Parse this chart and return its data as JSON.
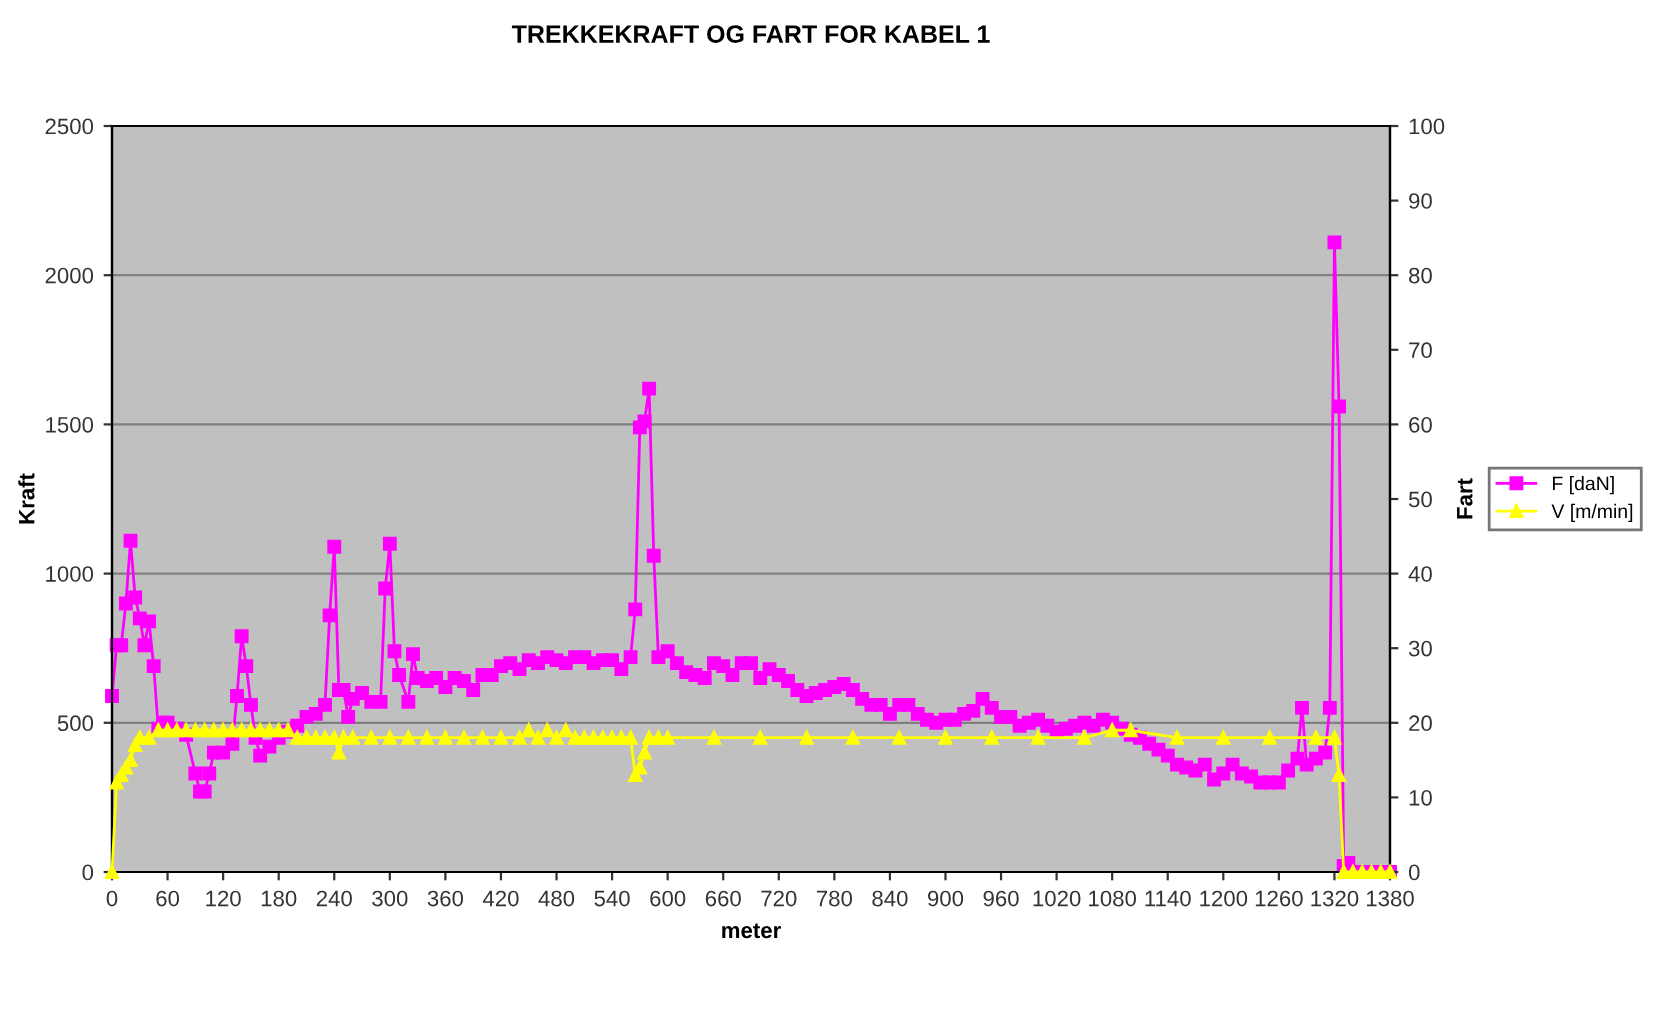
{
  "chart_data": {
    "type": "line",
    "title": "TREKKEKRAFT OG FART FOR KABEL 1",
    "xlabel": "meter",
    "ylabel": "Kraft",
    "y2label": "Fart",
    "xlim": [
      0,
      1380
    ],
    "xticks": [
      0,
      60,
      120,
      180,
      240,
      300,
      360,
      420,
      480,
      540,
      600,
      660,
      720,
      780,
      840,
      900,
      960,
      1020,
      1080,
      1140,
      1200,
      1260,
      1320,
      1380
    ],
    "ylim": [
      0,
      2500
    ],
    "yticks": [
      0,
      500,
      1000,
      1500,
      2000,
      2500
    ],
    "y2lim": [
      0,
      100
    ],
    "y2ticks": [
      0,
      10,
      20,
      30,
      40,
      50,
      60,
      70,
      80,
      90,
      100
    ],
    "grid": "y",
    "legend": "right",
    "series": [
      {
        "name": "F [daN]",
        "color": "#ff00ff",
        "marker": "square",
        "x": [
          0,
          5,
          10,
          15,
          20,
          25,
          30,
          35,
          40,
          45,
          50,
          55,
          60,
          70,
          80,
          90,
          95,
          100,
          105,
          110,
          120,
          130,
          135,
          140,
          145,
          150,
          155,
          160,
          170,
          180,
          190,
          200,
          210,
          220,
          230,
          235,
          240,
          245,
          250,
          255,
          260,
          270,
          280,
          290,
          295,
          300,
          305,
          310,
          320,
          325,
          330,
          340,
          350,
          360,
          370,
          380,
          390,
          400,
          410,
          420,
          430,
          440,
          450,
          460,
          470,
          480,
          490,
          500,
          510,
          520,
          530,
          540,
          550,
          560,
          565,
          570,
          575,
          580,
          585,
          590,
          600,
          610,
          620,
          630,
          640,
          650,
          660,
          670,
          680,
          690,
          700,
          710,
          720,
          730,
          740,
          750,
          760,
          770,
          780,
          790,
          800,
          810,
          820,
          830,
          840,
          850,
          860,
          870,
          880,
          890,
          900,
          910,
          920,
          930,
          940,
          950,
          960,
          970,
          980,
          990,
          1000,
          1010,
          1020,
          1030,
          1040,
          1050,
          1060,
          1070,
          1080,
          1090,
          1100,
          1110,
          1120,
          1130,
          1140,
          1150,
          1160,
          1170,
          1180,
          1190,
          1200,
          1210,
          1220,
          1230,
          1240,
          1250,
          1260,
          1270,
          1280,
          1285,
          1290,
          1300,
          1310,
          1315,
          1320,
          1325,
          1330,
          1335,
          1340,
          1350,
          1360,
          1370,
          1380
        ],
        "values": [
          590,
          760,
          760,
          900,
          1110,
          920,
          850,
          760,
          840,
          690,
          480,
          500,
          500,
          480,
          460,
          330,
          270,
          270,
          330,
          400,
          400,
          430,
          590,
          790,
          690,
          560,
          450,
          390,
          420,
          450,
          470,
          490,
          520,
          530,
          560,
          860,
          1090,
          610,
          610,
          520,
          580,
          600,
          570,
          570,
          950,
          1100,
          740,
          660,
          570,
          730,
          650,
          640,
          650,
          620,
          650,
          640,
          610,
          660,
          660,
          690,
          700,
          680,
          710,
          700,
          720,
          710,
          700,
          720,
          720,
          700,
          710,
          710,
          680,
          720,
          880,
          1490,
          1510,
          1620,
          1060,
          720,
          740,
          700,
          670,
          660,
          650,
          700,
          690,
          660,
          700,
          700,
          650,
          680,
          660,
          640,
          610,
          590,
          600,
          610,
          620,
          630,
          610,
          580,
          560,
          560,
          530,
          560,
          560,
          530,
          510,
          500,
          510,
          510,
          530,
          540,
          580,
          550,
          520,
          520,
          490,
          500,
          510,
          490,
          470,
          480,
          490,
          500,
          490,
          510,
          500,
          480,
          460,
          450,
          430,
          410,
          390,
          360,
          350,
          340,
          360,
          310,
          330,
          360,
          330,
          320,
          300,
          300,
          300,
          340,
          380,
          550,
          360,
          380,
          400,
          550,
          2110,
          1560,
          20,
          30,
          0,
          0,
          0,
          0,
          0
        ]
      },
      {
        "name": "V [m/min]",
        "color": "#ffff00",
        "marker": "triangle",
        "axis": "y2",
        "x": [
          0,
          5,
          10,
          15,
          20,
          25,
          30,
          40,
          50,
          60,
          70,
          80,
          90,
          100,
          110,
          120,
          130,
          140,
          150,
          160,
          170,
          180,
          190,
          200,
          210,
          220,
          230,
          240,
          245,
          250,
          260,
          280,
          300,
          320,
          340,
          360,
          380,
          400,
          420,
          440,
          450,
          460,
          470,
          480,
          490,
          500,
          510,
          520,
          530,
          540,
          550,
          560,
          565,
          570,
          575,
          580,
          590,
          600,
          650,
          700,
          750,
          800,
          850,
          900,
          950,
          1000,
          1050,
          1080,
          1100,
          1150,
          1200,
          1250,
          1300,
          1320,
          1325,
          1330,
          1340,
          1350,
          1360,
          1370,
          1380
        ],
        "values": [
          0,
          12,
          13,
          14,
          15,
          17,
          18,
          18,
          19,
          19,
          19,
          19,
          19,
          19,
          19,
          19,
          19,
          19,
          19,
          19,
          19,
          19,
          19,
          18,
          18,
          18,
          18,
          18,
          16,
          18,
          18,
          18,
          18,
          18,
          18,
          18,
          18,
          18,
          18,
          18,
          19,
          18,
          19,
          18,
          19,
          18,
          18,
          18,
          18,
          18,
          18,
          18,
          13,
          14,
          16,
          18,
          18,
          18,
          18,
          18,
          18,
          18,
          18,
          18,
          18,
          18,
          18,
          19,
          19,
          18,
          18,
          18,
          18,
          18,
          13,
          0,
          0,
          0,
          0,
          0,
          0
        ]
      }
    ]
  }
}
